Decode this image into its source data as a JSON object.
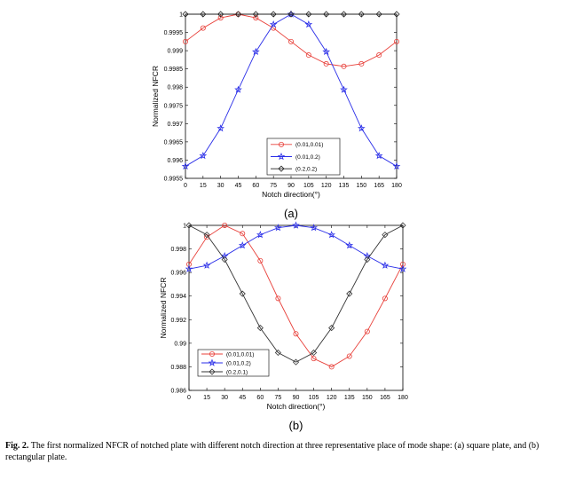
{
  "caption": {
    "label": "Fig. 2.",
    "text": "The first normalized NFCR of notched plate with different notch direction at three representative place of mode shape: (a) square plate, and (b) rectangular plate."
  },
  "chart_data": [
    {
      "type": "line",
      "panel_label": "(a)",
      "xlabel": "Notch direction(°)",
      "ylabel": "Normalized NFCR",
      "x": [
        0,
        15,
        30,
        45,
        60,
        75,
        90,
        105,
        120,
        135,
        150,
        165,
        180
      ],
      "xlim": [
        0,
        180
      ],
      "ylim": [
        0.9955,
        1
      ],
      "yticks": [
        0.9955,
        0.996,
        0.9965,
        0.997,
        0.9975,
        0.998,
        0.9985,
        0.999,
        0.9995,
        1
      ],
      "ytick_labels": [
        "0.9955",
        "0.996",
        "0.9965",
        "0.997",
        "0.9975",
        "0.998",
        "0.9985",
        "0.999",
        "0.9995",
        "1"
      ],
      "grid": false,
      "legend_position": "bottom-right",
      "series": [
        {
          "name": "(0.01,0.01)",
          "color": "#e8403a",
          "marker": "circle",
          "values": [
            0.99925,
            0.99962,
            0.9999,
            1.0,
            0.9999,
            0.99962,
            0.99925,
            0.99888,
            0.99864,
            0.99857,
            0.99864,
            0.99888,
            0.99925
          ]
        },
        {
          "name": "(0.01,0.2)",
          "color": "#2a2ee8",
          "marker": "star",
          "values": [
            0.99583,
            0.99612,
            0.99687,
            0.99793,
            0.99897,
            0.99972,
            1.0,
            0.99972,
            0.99897,
            0.99793,
            0.99687,
            0.99612,
            0.99583
          ]
        },
        {
          "name": "(0.2,0.2)",
          "color": "#222222",
          "marker": "diamond",
          "values": [
            1,
            1,
            1,
            1,
            1,
            1,
            1,
            1,
            1,
            1,
            1,
            1,
            1
          ]
        }
      ]
    },
    {
      "type": "line",
      "panel_label": "(b)",
      "xlabel": "Notch direction(°)",
      "ylabel": "Normalized NFCR",
      "x": [
        0,
        15,
        30,
        45,
        60,
        75,
        90,
        105,
        120,
        135,
        150,
        165,
        180
      ],
      "xlim": [
        0,
        180
      ],
      "ylim": [
        0.986,
        1
      ],
      "yticks": [
        0.986,
        0.988,
        0.99,
        0.992,
        0.994,
        0.996,
        0.998,
        1
      ],
      "ytick_labels": [
        "0.986",
        "0.988",
        "0.99",
        "0.992",
        "0.994",
        "0.996",
        "0.998",
        "1"
      ],
      "grid": false,
      "legend_position": "bottom-left",
      "series": [
        {
          "name": "(0.01,0.01)",
          "color": "#e8403a",
          "marker": "circle",
          "values": [
            0.9967,
            0.999,
            1.0,
            0.9993,
            0.997,
            0.9938,
            0.9908,
            0.9887,
            0.988,
            0.9889,
            0.991,
            0.9938,
            0.9967
          ]
        },
        {
          "name": "(0.01,0.2)",
          "color": "#2a2ee8",
          "marker": "star",
          "values": [
            0.9963,
            0.9966,
            0.9974,
            0.9983,
            0.9992,
            0.9998,
            1.0,
            0.9998,
            0.9992,
            0.9983,
            0.9974,
            0.9966,
            0.9963
          ]
        },
        {
          "name": "(0.2,0.1)",
          "color": "#333333",
          "marker": "diamond",
          "values": [
            1.0,
            0.9992,
            0.9971,
            0.9942,
            0.9913,
            0.9892,
            0.9884,
            0.9892,
            0.9913,
            0.9942,
            0.9971,
            0.9992,
            1.0
          ]
        }
      ]
    }
  ]
}
